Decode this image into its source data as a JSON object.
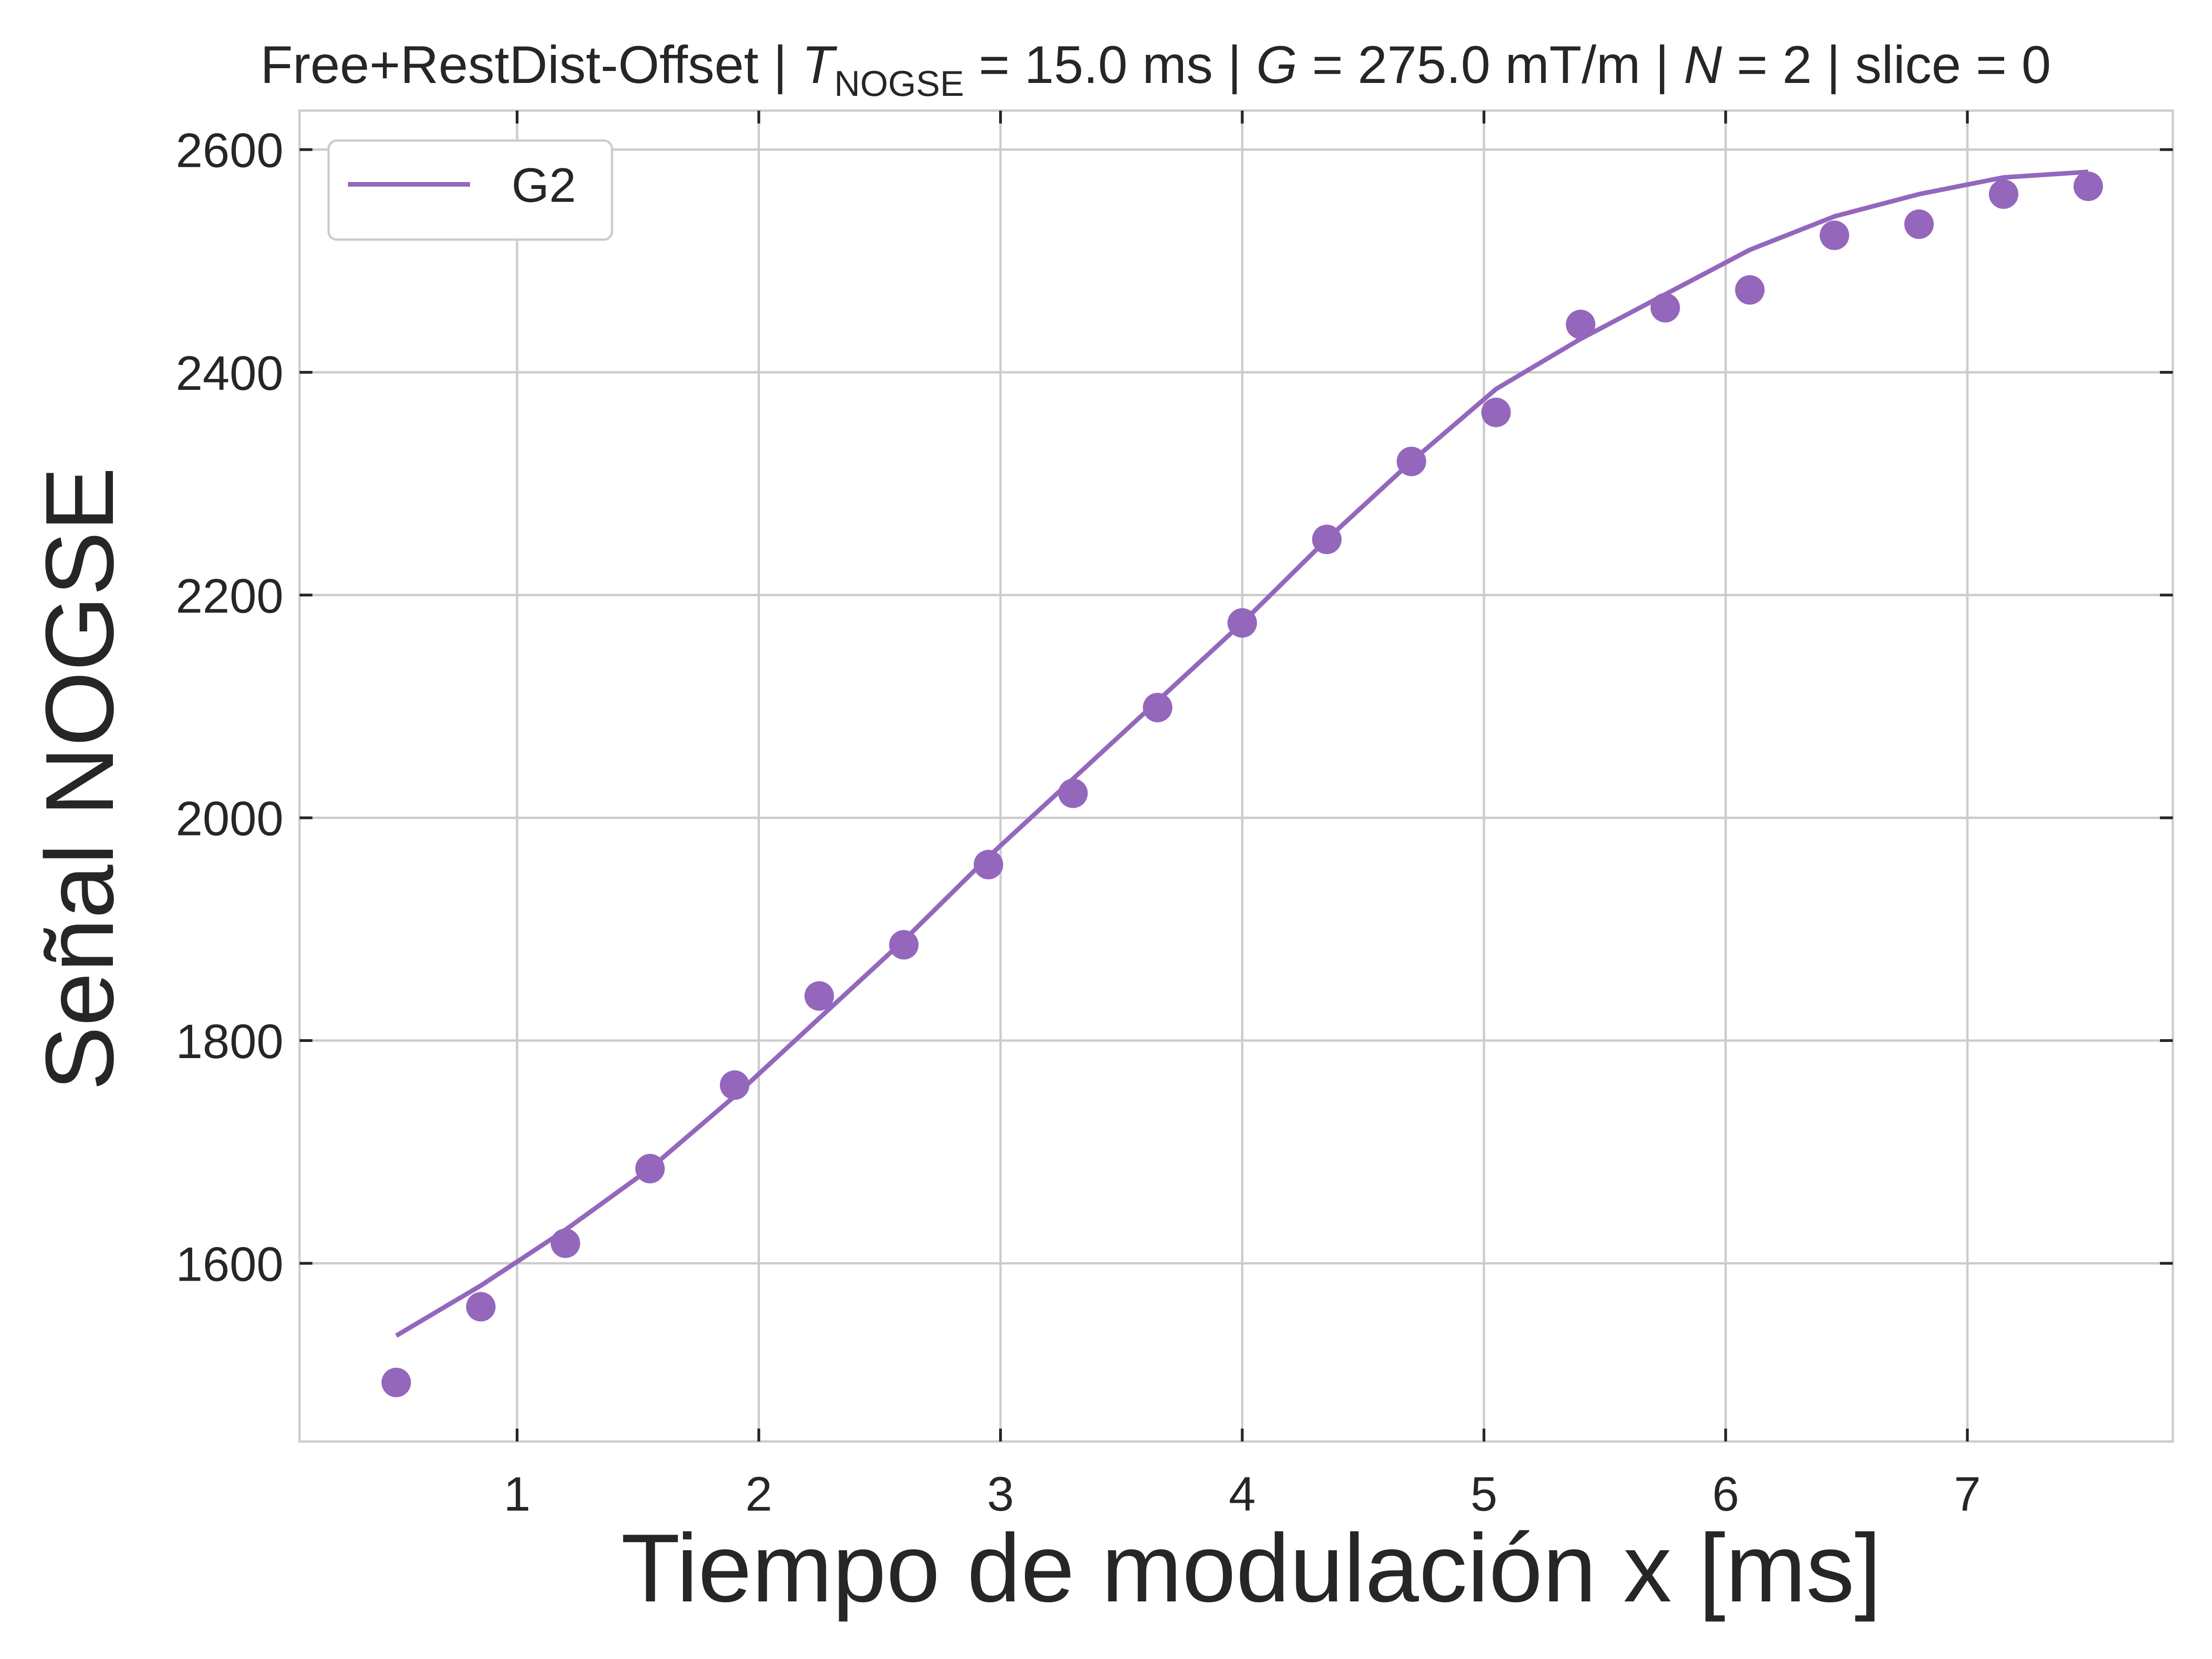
{
  "chart_data": {
    "type": "scatter",
    "title": {
      "prefix": "Free+RestDist-Offset | ",
      "t_symbol": "T",
      "t_subscript": "NOGSE",
      "t_value": " = 15.0 ms | ",
      "g_symbol": "G",
      "g_value": " = 275.0 mT/m | ",
      "n_symbol": "N",
      "n_value": " = 2 | slice = 0"
    },
    "xlabel": "Tiempo de modulación x [ms]",
    "ylabel": "Señal NOGSE",
    "xlim": [
      0.1,
      7.85
    ],
    "ylim": [
      1440,
      2635
    ],
    "x_ticks": [
      1,
      2,
      3,
      4,
      5,
      6,
      7
    ],
    "y_ticks": [
      1600,
      1800,
      2000,
      2200,
      2400,
      2600
    ],
    "grid": true,
    "legend": {
      "position": "top-left",
      "entries": [
        "G2"
      ]
    },
    "colors": {
      "series": "#9467bd",
      "grid": "#cccccc",
      "frame": "#cccccc",
      "tick": "#262626"
    },
    "series": [
      {
        "name": "G2",
        "kind": "points",
        "x": [
          0.5,
          0.85,
          1.2,
          1.55,
          1.9,
          2.25,
          2.6,
          2.95,
          3.3,
          3.65,
          4.0,
          4.35,
          4.7,
          5.05,
          5.4,
          5.75,
          6.1,
          6.45,
          6.8,
          7.15,
          7.5
        ],
        "y": [
          1493,
          1561,
          1618,
          1685,
          1760,
          1840,
          1886,
          1958,
          2022,
          2099,
          2175,
          2250,
          2320,
          2364,
          2443,
          2458,
          2474,
          2523,
          2533,
          2560,
          2567
        ]
      },
      {
        "name": "G2",
        "kind": "fit-line",
        "x": [
          0.5,
          0.85,
          1.2,
          1.55,
          1.9,
          2.25,
          2.6,
          2.95,
          3.3,
          3.65,
          4.0,
          4.35,
          4.7,
          5.05,
          5.4,
          5.75,
          6.1,
          6.45,
          6.8,
          7.15,
          7.5
        ],
        "y": [
          1535,
          1580,
          1630,
          1685,
          1750,
          1820,
          1890,
          1965,
          2035,
          2105,
          2175,
          2250,
          2320,
          2385,
          2430,
          2470,
          2510,
          2540,
          2560,
          2575,
          2580
        ]
      }
    ]
  }
}
